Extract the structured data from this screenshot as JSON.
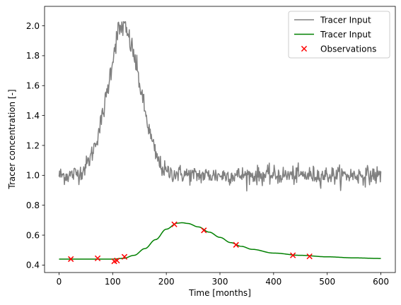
{
  "chart_data": {
    "type": "line",
    "title": "",
    "xlabel": "Time [months]",
    "ylabel": "Tracer concentration [-]",
    "xlim": [
      -27,
      627
    ],
    "ylim": [
      0.35,
      2.13
    ],
    "xticks": [
      0,
      100,
      200,
      300,
      400,
      500,
      600
    ],
    "yticks": [
      0.4,
      0.6,
      0.8,
      1.0,
      1.2,
      1.4,
      1.6,
      1.8,
      2.0
    ],
    "ytick_labels": [
      "0.4",
      "0.6",
      "0.8",
      "1.0",
      "1.2",
      "1.4",
      "1.6",
      "1.8",
      "2.0"
    ],
    "grid": false,
    "legend_position": "top-right",
    "series": [
      {
        "name": "Tracer Input",
        "kind": "line",
        "color": "#808080",
        "noise": 0.03,
        "x": [
          0,
          20,
          40,
          50,
          60,
          70,
          80,
          90,
          100,
          105,
          110,
          115,
          120,
          125,
          130,
          140,
          150,
          160,
          170,
          180,
          190,
          200,
          250,
          300,
          400,
          500,
          600
        ],
        "y": [
          1.0,
          1.0,
          1.02,
          1.06,
          1.13,
          1.24,
          1.38,
          1.56,
          1.78,
          1.88,
          1.96,
          1.98,
          2.0,
          1.96,
          1.92,
          1.8,
          1.62,
          1.43,
          1.27,
          1.14,
          1.06,
          1.02,
          1.0,
          1.0,
          1.0,
          1.0,
          1.0
        ]
      },
      {
        "name": "Tracer Input",
        "kind": "line",
        "color": "#008000",
        "x": [
          0,
          50,
          100,
          120,
          140,
          160,
          180,
          200,
          220,
          230,
          240,
          260,
          280,
          300,
          320,
          340,
          360,
          400,
          450,
          500,
          550,
          600
        ],
        "y": [
          0.44,
          0.44,
          0.44,
          0.445,
          0.465,
          0.51,
          0.57,
          0.64,
          0.68,
          0.683,
          0.678,
          0.655,
          0.62,
          0.585,
          0.55,
          0.525,
          0.505,
          0.48,
          0.465,
          0.455,
          0.448,
          0.444
        ]
      },
      {
        "name": "Observations",
        "kind": "scatter",
        "marker": "x",
        "color": "#ff0000",
        "x": [
          22,
          72,
          103,
          108,
          122,
          215,
          270,
          330,
          436,
          467
        ],
        "y": [
          0.44,
          0.445,
          0.425,
          0.43,
          0.455,
          0.672,
          0.632,
          0.535,
          0.465,
          0.458
        ]
      }
    ]
  }
}
